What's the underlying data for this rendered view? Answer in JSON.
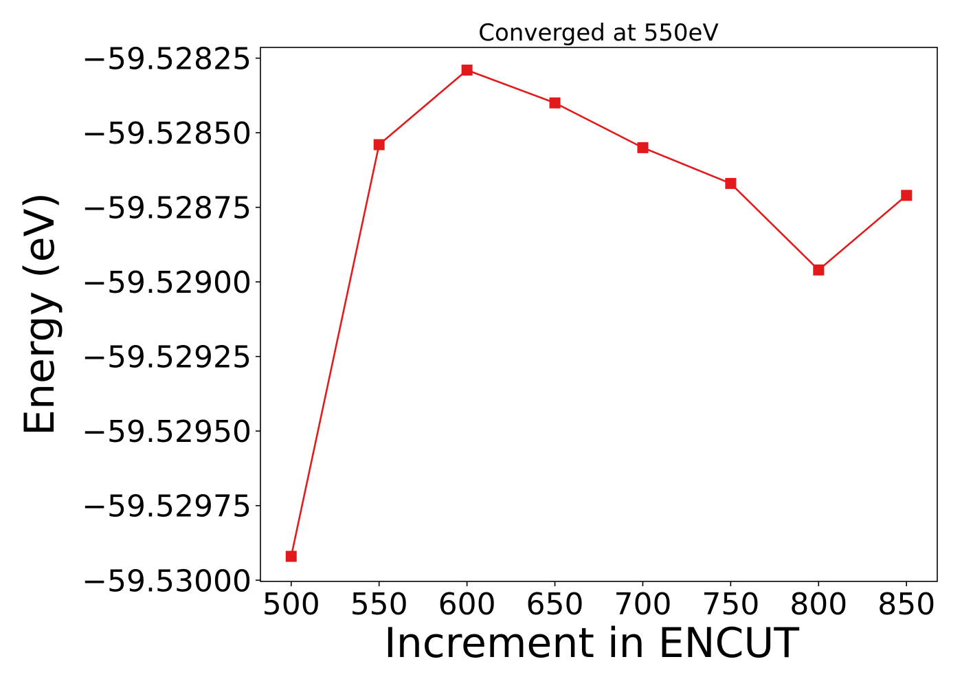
{
  "chart_data": {
    "type": "line",
    "title": "Converged at 550eV",
    "xlabel": "Increment in ENCUT",
    "ylabel": "Energy (eV)",
    "x": [
      500,
      550,
      600,
      650,
      700,
      750,
      800,
      850
    ],
    "series": [
      {
        "values": [
          -59.52992,
          -59.52854,
          -59.52829,
          -59.5284,
          -59.52855,
          -59.52867,
          -59.52896,
          -59.52871
        ],
        "color": "#e31a1c",
        "marker": "square"
      }
    ],
    "xticks": [
      500,
      550,
      600,
      650,
      700,
      750,
      800,
      850
    ],
    "xtick_labels": [
      "500",
      "550",
      "600",
      "650",
      "700",
      "750",
      "800",
      "850"
    ],
    "yticks": [
      -59.52825,
      -59.5285,
      -59.52875,
      -59.529,
      -59.52925,
      -59.5295,
      -59.52975,
      -59.53
    ],
    "ytick_labels": [
      "−59.52825",
      "−59.52850",
      "−59.52875",
      "−59.52900",
      "−59.52925",
      "−59.52950",
      "−59.52975",
      "−59.53000"
    ],
    "xlim": [
      482.5,
      867.5
    ],
    "ylim": [
      -59.530004,
      -59.528214
    ],
    "grid": false,
    "legend": "none"
  }
}
